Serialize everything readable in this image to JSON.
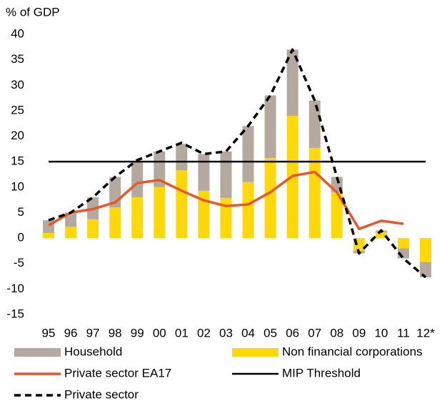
{
  "chart_data": {
    "type": "bar",
    "y_label": "% of GDP",
    "categories": [
      "95",
      "96",
      "97",
      "98",
      "99",
      "00",
      "01",
      "02",
      "03",
      "04",
      "05",
      "06",
      "07",
      "08",
      "09",
      "10",
      "11",
      "12*"
    ],
    "ylim": [
      -15,
      40
    ],
    "yticks": [
      -15,
      -10,
      -5,
      0,
      5,
      10,
      15,
      20,
      25,
      30,
      35,
      40
    ],
    "series": [
      {
        "name": "Household",
        "type": "bar",
        "color": "#b3a99f",
        "values": [
          2.5,
          2.8,
          4.3,
          6,
          7,
          7,
          5.2,
          7.2,
          9.1,
          11,
          12.3,
          13,
          9.3,
          3,
          -0.5,
          0.3,
          -2,
          -3
        ]
      },
      {
        "name": "Non financial corporations",
        "type": "bar",
        "color": "#ffd80a",
        "values": [
          1,
          2.2,
          3.7,
          6,
          8,
          10,
          13.3,
          9.3,
          7.9,
          11,
          15.7,
          24,
          17.7,
          9,
          -2.5,
          1.2,
          -2,
          -4.7
        ]
      },
      {
        "name": "Private sector EA17",
        "type": "line",
        "color": "#e8572a",
        "values": [
          2.5,
          5,
          5.7,
          7,
          10.8,
          11.4,
          9.3,
          7.4,
          6.3,
          6.6,
          9,
          12.2,
          13,
          9,
          1.8,
          3.4,
          2.8,
          null
        ]
      },
      {
        "name": "MIP Threshold",
        "type": "line",
        "color": "#000000",
        "values": [
          15,
          15,
          15,
          15,
          15,
          15,
          15,
          15,
          15,
          15,
          15,
          15,
          15,
          15,
          15,
          15,
          15,
          15
        ]
      },
      {
        "name": "Private sector",
        "type": "dashed",
        "color": "#000000",
        "values": [
          3.5,
          5,
          8,
          12,
          15.3,
          17,
          18.7,
          16.5,
          17,
          22,
          28,
          37,
          27,
          12,
          -3,
          1.5,
          -4,
          -7.7
        ]
      }
    ]
  }
}
